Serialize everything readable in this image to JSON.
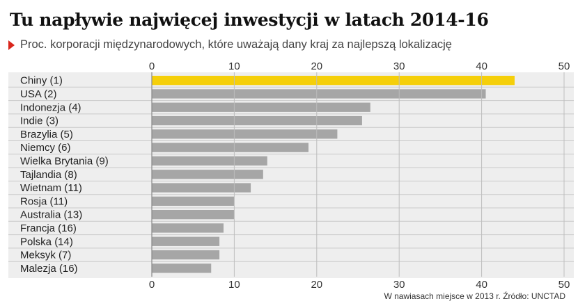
{
  "title": "Tu napływie najwięcej inwestycji w latach 2014-16",
  "subtitle": "Proc. korporacji międzynarodowych, które uważają dany kraj za najlepszą lokalizację",
  "footer": "W nawiasach miejsce w 2013 r. Źródło: UNCTAD",
  "colors": {
    "highlight": "#f5cf0a",
    "bar": "#a6a6a6",
    "panel": "#eeeeee",
    "accent_triangle": "#d9261c"
  },
  "chart_data": {
    "type": "bar",
    "orientation": "horizontal",
    "categories": [
      "Chiny (1)",
      "USA (2)",
      "Indonezja (4)",
      "Indie (3)",
      "Brazylia (5)",
      "Niemcy (6)",
      "Wielka Brytania (9)",
      "Tajlandia (8)",
      "Wietnam (11)",
      "Rosja (11)",
      "Australia (13)",
      "Francja (16)",
      "Polska (14)",
      "Meksyk (7)",
      "Malezja (16)"
    ],
    "values": [
      44,
      40.5,
      26.5,
      25.5,
      22.5,
      19,
      14,
      13.5,
      12,
      10,
      10,
      8.7,
      8.2,
      8.2,
      7.2
    ],
    "highlight_index": 0,
    "xlim": [
      0,
      50
    ],
    "ticks": [
      0,
      10,
      20,
      30,
      40,
      50
    ],
    "grid": true,
    "axis_labels_top_and_bottom": true
  }
}
